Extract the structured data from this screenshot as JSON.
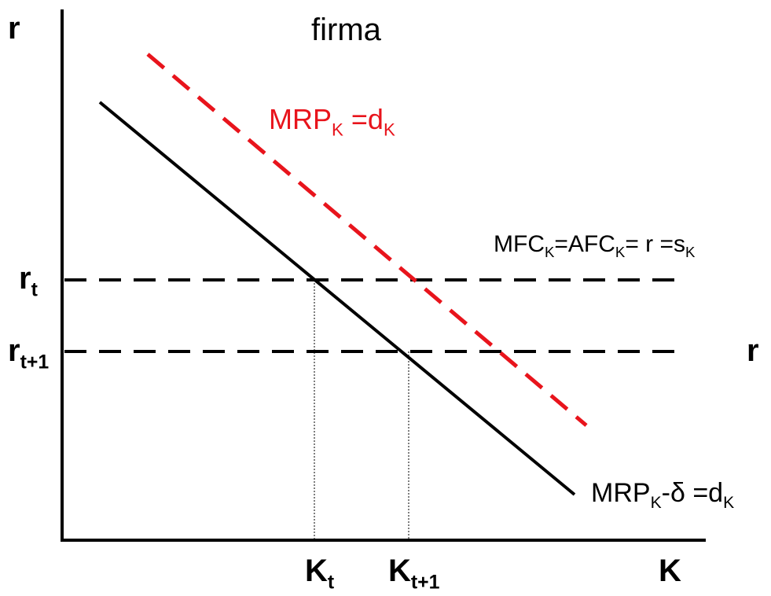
{
  "title": "firma",
  "axes": {
    "y_label": "r",
    "x_label": "K",
    "right_label": "r"
  },
  "rate_labels": {
    "rt": {
      "base": "r",
      "sub": "t"
    },
    "rt1": {
      "base": "r",
      "sub": "t+1"
    }
  },
  "capital_labels": {
    "kt": {
      "base": "K",
      "sub": "t"
    },
    "kt1": {
      "base": "K",
      "sub": "t+1"
    }
  },
  "curves": {
    "demand_red": {
      "color": "#e8141c",
      "style": "dashed",
      "label": {
        "p1": "MRP",
        "s1": "K",
        "p2": " =d",
        "s2": "K"
      }
    },
    "demand_black": {
      "color": "#000000",
      "style": "solid",
      "label": {
        "p1": "MRP",
        "s1": "K",
        "p2": "-δ =d",
        "s2": "K"
      }
    },
    "supply": {
      "color": "#000000",
      "style": "dashed",
      "label": {
        "p1": "MFC",
        "s1": "K",
        "p2": "=AFC",
        "s2": "K",
        "p3": "= r =s",
        "s3": "K"
      }
    }
  }
}
